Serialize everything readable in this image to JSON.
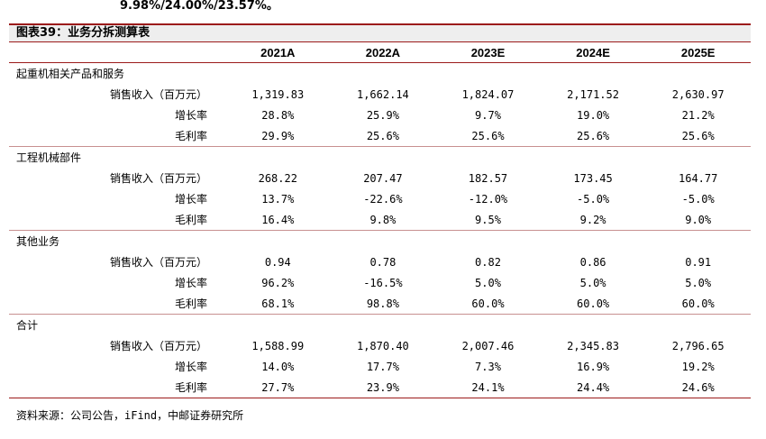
{
  "top_text": "9.98%/24.00%/23.57%。",
  "title": "图表39：业务分拆测算表",
  "years": [
    "2021A",
    "2022A",
    "2023E",
    "2024E",
    "2025E"
  ],
  "groups": [
    {
      "name": "起重机相关产品和服务",
      "rows": [
        {
          "label": "销售收入（百万元）",
          "values": [
            "1,319.83",
            "1,662.14",
            "1,824.07",
            "2,171.52",
            "2,630.97"
          ]
        },
        {
          "label": "增长率",
          "values": [
            "28.8%",
            "25.9%",
            "9.7%",
            "19.0%",
            "21.2%"
          ]
        },
        {
          "label": "毛利率",
          "values": [
            "29.9%",
            "25.6%",
            "25.6%",
            "25.6%",
            "25.6%"
          ]
        }
      ]
    },
    {
      "name": "工程机械部件",
      "rows": [
        {
          "label": "销售收入（百万元）",
          "values": [
            "268.22",
            "207.47",
            "182.57",
            "173.45",
            "164.77"
          ]
        },
        {
          "label": "增长率",
          "values": [
            "13.7%",
            "-22.6%",
            "-12.0%",
            "-5.0%",
            "-5.0%"
          ]
        },
        {
          "label": "毛利率",
          "values": [
            "16.4%",
            "9.8%",
            "9.5%",
            "9.2%",
            "9.0%"
          ]
        }
      ]
    },
    {
      "name": "其他业务",
      "rows": [
        {
          "label": "销售收入（百万元）",
          "values": [
            "0.94",
            "0.78",
            "0.82",
            "0.86",
            "0.91"
          ]
        },
        {
          "label": "增长率",
          "values": [
            "96.2%",
            "-16.5%",
            "5.0%",
            "5.0%",
            "5.0%"
          ]
        },
        {
          "label": "毛利率",
          "values": [
            "68.1%",
            "98.8%",
            "60.0%",
            "60.0%",
            "60.0%"
          ]
        }
      ]
    },
    {
      "name": "合计",
      "rows": [
        {
          "label": "销售收入（百万元）",
          "values": [
            "1,588.99",
            "1,870.40",
            "2,007.46",
            "2,345.83",
            "2,796.65"
          ]
        },
        {
          "label": "增长率",
          "values": [
            "14.0%",
            "17.7%",
            "7.3%",
            "16.9%",
            "19.2%"
          ]
        },
        {
          "label": "毛利率",
          "values": [
            "27.7%",
            "23.9%",
            "24.1%",
            "24.4%",
            "24.6%"
          ]
        }
      ]
    }
  ],
  "source": "资料来源：公司公告，iFind，中邮证券研究所",
  "colors": {
    "accent": "#9c1b1b",
    "title_bg": "#eeeeee"
  }
}
